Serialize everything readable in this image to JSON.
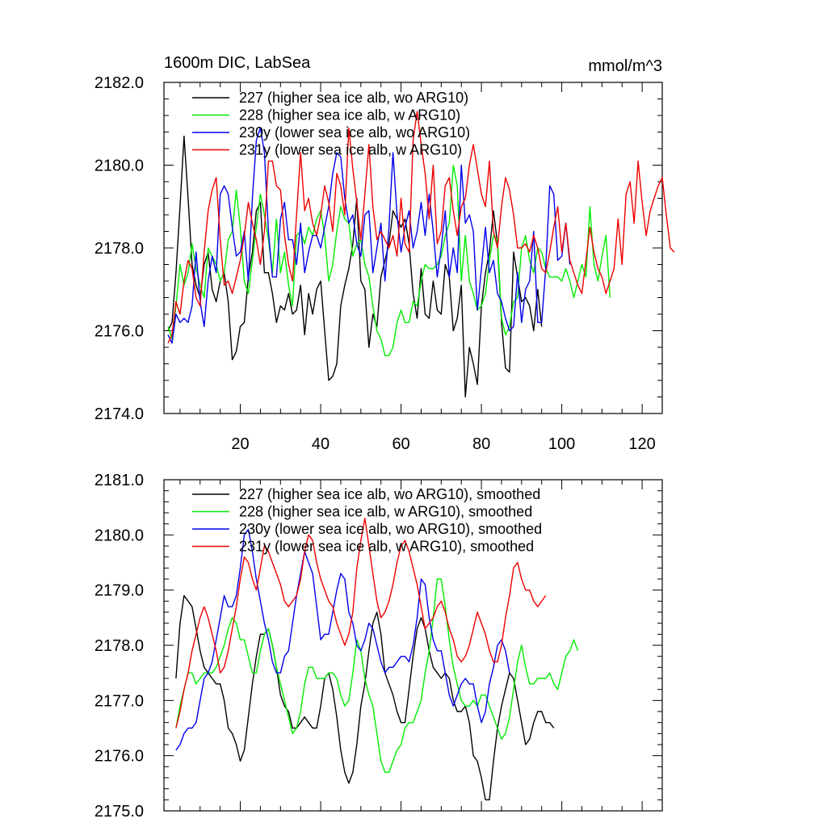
{
  "chart_data": [
    {
      "type": "line",
      "title": "1600m DIC, LabSea",
      "units": "mmol/m^3",
      "xlabel": "",
      "ylabel": "",
      "xlim": [
        1,
        125
      ],
      "ylim": [
        2174.0,
        2182.0
      ],
      "x_ticks": [
        20,
        40,
        60,
        80,
        100,
        120
      ],
      "y_ticks": [
        2174.0,
        2176.0,
        2178.0,
        2180.0,
        2182.0
      ],
      "y_tick_labels": [
        "2174.0",
        "2176.0",
        "2178.0",
        "2180.0",
        "2182.0"
      ],
      "legend_position": "top-left",
      "series": [
        {
          "name": "227 (higher sea ice alb, wo ARG10)",
          "color": "#000000",
          "x_start": 2,
          "values": [
            2176.0,
            2176.2,
            2177.4,
            2179.0,
            2180.7,
            2179.2,
            2177.6,
            2177.1,
            2176.8,
            2177.6,
            2177.9,
            2177.0,
            2176.7,
            2177.2,
            2177.4,
            2176.7,
            2175.3,
            2175.5,
            2176.1,
            2176.2,
            2177.3,
            2177.9,
            2178.9,
            2179.1,
            2177.4,
            2177.4,
            2176.9,
            2176.2,
            2176.6,
            2176.5,
            2176.9,
            2176.4,
            2176.5,
            2177.1,
            2175.9,
            2176.9,
            2176.4,
            2177.0,
            2177.2,
            2176.0,
            2174.8,
            2174.9,
            2175.2,
            2176.6,
            2177.1,
            2177.5,
            2178.1,
            2179.2,
            2177.2,
            2177.0,
            2175.6,
            2176.4,
            2176.1,
            2177.3,
            2177.7,
            2178.1,
            2178.9,
            2178.7,
            2178.5,
            2178.7,
            2178.1,
            2176.9,
            2176.3,
            2177.5,
            2176.4,
            2176.3,
            2177.2,
            2176.5,
            2176.4,
            2177.6,
            2177.3,
            2176.0,
            2176.3,
            2177.1,
            2174.4,
            2175.6,
            2175.2,
            2174.7,
            2176.6,
            2177.4,
            2177.9,
            2178.9,
            2178.1,
            2176.2,
            2175.1,
            2175.0,
            2177.9,
            2177.3,
            2176.7,
            2176.8,
            2176.6,
            2176.0,
            2177.0,
            2176.1
          ]
        },
        {
          "name": "228 (higher sea ice alb, w ARG10)",
          "color": "#00ee00",
          "x_start": 2,
          "values": [
            2176.1,
            2175.8,
            2176.6,
            2177.6,
            2177.1,
            2177.4,
            2178.1,
            2177.5,
            2177.1,
            2176.8,
            2178.0,
            2177.8,
            2177.6,
            2177.2,
            2177.4,
            2178.2,
            2178.4,
            2179.4,
            2178.5,
            2177.2,
            2176.9,
            2177.7,
            2178.5,
            2179.3,
            2178.8,
            2178.2,
            2177.4,
            2178.7,
            2177.4,
            2177.9,
            2177.1,
            2176.6,
            2178.3,
            2178.4,
            2178.1,
            2178.5,
            2178.3,
            2178.7,
            2178.9,
            2178.3,
            2177.2,
            2177.6,
            2178.4,
            2179.0,
            2178.7,
            2178.6,
            2177.8,
            2178.1,
            2178.2,
            2177.6,
            2177.3,
            2176.6,
            2176.0,
            2175.8,
            2175.4,
            2175.4,
            2175.6,
            2176.2,
            2176.5,
            2176.2,
            2176.2,
            2176.7,
            2176.6,
            2177.2,
            2177.6,
            2177.5,
            2177.5,
            2177.6,
            2177.8,
            2178.3,
            2178.6,
            2180.0,
            2179.5,
            2177.2,
            2178.3,
            2177.2,
            2176.9,
            2176.5,
            2176.6,
            2176.9,
            2177.7,
            2178.3,
            2178.2,
            2176.3,
            2175.9,
            2176.1,
            2176.7,
            2176.8,
            2178.0,
            2178.3,
            2177.7,
            2177.4,
            2178.0,
            2177.9,
            2177.5,
            2177.3,
            2177.3,
            2177.3,
            2177.2,
            2177.5,
            2177.2,
            2176.8,
            2177.2,
            2177.6,
            2177.3,
            2179.0,
            2177.6,
            2177.2,
            2177.8,
            2178.3,
            2176.8
          ]
        },
        {
          "name": "230y (lower sea ice alb, wo ARG10)",
          "color": "#0000ee",
          "x_start": 2,
          "values": [
            2175.9,
            2175.7,
            2176.4,
            2176.2,
            2176.3,
            2176.2,
            2176.6,
            2177.9,
            2176.7,
            2176.1,
            2177.2,
            2177.8,
            2177.4,
            2179.3,
            2179.5,
            2179.3,
            2178.5,
            2177.8,
            2177.9,
            2178.4,
            2177.2,
            2179.2,
            2180.6,
            2180.9,
            2180.3,
            2178.4,
            2177.3,
            2177.3,
            2178.7,
            2179.1,
            2178.2,
            2178.2,
            2177.6,
            2178.6,
            2177.4,
            2177.9,
            2178.3,
            2178.3,
            2178.0,
            2178.5,
            2179.0,
            2179.8,
            2180.3,
            2180.2,
            2179.2,
            2178.6,
            2178.8,
            2178.1,
            2177.8,
            2178.8,
            2178.9,
            2177.4,
            2178.0,
            2178.6,
            2177.2,
            2178.5,
            2180.3,
            2178.8,
            2177.9,
            2178.5,
            2178.9,
            2178.0,
            2178.4,
            2179.1,
            2178.3,
            2179.3,
            2178.4,
            2177.3,
            2178.0,
            2178.9,
            2177.3,
            2178.0,
            2177.4,
            2180.0,
            2178.6,
            2178.8,
            2178.4,
            2176.5,
            2177.5,
            2178.5,
            2177.4,
            2177.7,
            2176.9,
            2176.7,
            2176.3,
            2176.0,
            2176.1,
            2177.4,
            2176.2,
            2177.0,
            2177.2,
            2178.4,
            2176.2,
            2176.2,
            2177.5,
            2179.5,
            2179.3,
            2177.7,
            2177.8,
            2178.6,
            2177.6
          ]
        },
        {
          "name": "231y (lower sea ice alb, w ARG10)",
          "color": "#ee0000",
          "x_start": 2,
          "values": [
            2175.7,
            2175.9,
            2176.7,
            2176.4,
            2177.2,
            2177.7,
            2177.5,
            2176.8,
            2176.6,
            2177.9,
            2178.9,
            2179.4,
            2179.7,
            2178.2,
            2177.1,
            2177.2,
            2176.9,
            2177.3,
            2177.7,
            2178.3,
            2179.1,
            2178.6,
            2178.2,
            2177.6,
            2178.4,
            2180.1,
            2180.1,
            2179.5,
            2179.4,
            2178.3,
            2177.6,
            2177.2,
            2178.8,
            2180.3,
            2178.9,
            2179.2,
            2178.6,
            2178.3,
            2178.8,
            2179.5,
            2179.1,
            2178.4,
            2179.8,
            2179.5,
            2178.8,
            2180.9,
            2179.9,
            2179.1,
            2178.2,
            2179.3,
            2180.5,
            2179.0,
            2178.2,
            2178.4,
            2178.2,
            2178.0,
            2178.3,
            2177.8,
            2179.2,
            2178.1,
            2177.9,
            2180.6,
            2181.3,
            2180.5,
            2179.8,
            2178.7,
            2180.0,
            2178.1,
            2178.4,
            2179.5,
            2179.7,
            2178.9,
            2178.3,
            2179.0,
            2179.2,
            2180.0,
            2180.5,
            2179.9,
            2179.3,
            2179.0,
            2180.1,
            2178.4,
            2178.0,
            2179.0,
            2179.7,
            2179.4,
            2178.8,
            2178.0,
            2178.0,
            2178.1,
            2177.9,
            2178.3,
            2178.0,
            2177.5,
            2177.4,
            2177.9,
            2178.5,
            2179.0,
            2177.9,
            2178.6,
            2177.7,
            2177.4,
            2177.1,
            2176.9,
            2177.7,
            2178.5,
            2177.9,
            2177.5,
            2177.3,
            2176.9,
            2177.2,
            2177.5,
            2178.7,
            2177.6,
            2179.3,
            2179.6,
            2178.6,
            2180.1,
            2179.1,
            2178.3,
            2178.9,
            2179.2,
            2179.5,
            2179.7,
            2178.8,
            2178.0,
            2177.9
          ]
        }
      ]
    },
    {
      "type": "line",
      "title": "",
      "xlabel": "",
      "ylabel": "",
      "xlim": [
        1,
        125
      ],
      "ylim": [
        2175.0,
        2181.0
      ],
      "x_ticks": [
        20,
        40,
        60,
        80,
        100,
        120
      ],
      "y_ticks": [
        2175.0,
        2176.0,
        2177.0,
        2178.0,
        2179.0,
        2180.0,
        2181.0
      ],
      "y_tick_labels": [
        "2175.0",
        "2176.0",
        "2177.0",
        "2178.0",
        "2179.0",
        "2180.0",
        "2181.0"
      ],
      "legend_position": "top-left",
      "series": [
        {
          "name": "227 (higher sea ice alb, wo ARG10), smoothed",
          "color": "#000000",
          "x_start": 4,
          "values": [
            2177.4,
            2178.4,
            2178.9,
            2178.8,
            2178.7,
            2178.3,
            2177.9,
            2177.6,
            2177.5,
            2177.4,
            2177.3,
            2177.3,
            2177.0,
            2176.5,
            2176.4,
            2176.2,
            2175.9,
            2176.1,
            2176.7,
            2177.3,
            2177.8,
            2178.2,
            2178.2,
            2178.3,
            2178.0,
            2177.6,
            2177.1,
            2176.9,
            2176.8,
            2176.5,
            2176.5,
            2176.6,
            2176.7,
            2176.6,
            2176.5,
            2176.5,
            2176.9,
            2177.4,
            2177.5,
            2177.2,
            2176.7,
            2176.1,
            2175.7,
            2175.5,
            2175.7,
            2176.2,
            2176.9,
            2177.3,
            2177.9,
            2178.4,
            2178.6,
            2178.2,
            2177.5,
            2177.3,
            2177.1,
            2176.8,
            2176.6,
            2176.6,
            2177.2,
            2177.8,
            2178.3,
            2178.5,
            2178.3,
            2177.9,
            2177.6,
            2177.5,
            2177.4,
            2177.5,
            2177.4,
            2177.0,
            2176.8,
            2176.8,
            2176.9,
            2176.6,
            2176.0,
            2175.9,
            2175.6,
            2175.2,
            2175.2,
            2175.9,
            2176.5,
            2176.9,
            2177.2,
            2177.5,
            2177.4,
            2177.0,
            2176.6,
            2176.2,
            2176.3,
            2176.6,
            2176.8,
            2176.8,
            2176.6,
            2176.6,
            2176.5
          ]
        },
        {
          "name": "228 (higher sea ice alb, w ARG10), smoothed",
          "color": "#00ee00",
          "x_start": 4,
          "values": [
            2176.5,
            2176.9,
            2177.2,
            2177.5,
            2177.5,
            2177.3,
            2177.4,
            2177.5,
            2177.5,
            2177.5,
            2177.6,
            2177.8,
            2178.0,
            2178.3,
            2178.5,
            2178.4,
            2178.1,
            2178.1,
            2177.8,
            2177.5,
            2177.5,
            2177.9,
            2178.2,
            2178.3,
            2178.0,
            2177.6,
            2177.3,
            2177.0,
            2176.7,
            2176.4,
            2176.5,
            2176.8,
            2177.3,
            2177.6,
            2177.6,
            2177.4,
            2177.4,
            2177.4,
            2177.5,
            2177.5,
            2177.4,
            2177.1,
            2176.9,
            2177.0,
            2177.5,
            2178.1,
            2177.9,
            2177.4,
            2177.1,
            2176.9,
            2176.4,
            2175.9,
            2175.7,
            2175.7,
            2175.9,
            2176.1,
            2176.2,
            2176.5,
            2176.6,
            2176.6,
            2176.8,
            2177.0,
            2177.5,
            2177.9,
            2178.5,
            2179.2,
            2179.2,
            2178.7,
            2178.1,
            2177.6,
            2177.3,
            2177.0,
            2176.9,
            2176.9,
            2177.0,
            2176.9,
            2177.1,
            2177.1,
            2176.9,
            2176.7,
            2176.5,
            2176.3,
            2176.4,
            2176.7,
            2177.2,
            2177.7,
            2178.0,
            2177.6,
            2177.3,
            2177.3,
            2177.4,
            2177.4,
            2177.4,
            2177.5,
            2177.3,
            2177.2,
            2177.5,
            2177.8,
            2177.9,
            2178.1,
            2177.9
          ]
        },
        {
          "name": "230y (lower sea ice alb, wo ARG10), smoothed",
          "color": "#0000ee",
          "x_start": 4,
          "values": [
            2176.1,
            2176.2,
            2176.4,
            2176.5,
            2176.5,
            2176.6,
            2177.0,
            2177.4,
            2177.5,
            2177.7,
            2178.1,
            2178.5,
            2178.9,
            2178.7,
            2178.7,
            2178.9,
            2179.4,
            2180.0,
            2180.1,
            2179.7,
            2179.2,
            2178.8,
            2178.4,
            2178.1,
            2177.7,
            2177.5,
            2177.5,
            2177.8,
            2177.9,
            2178.4,
            2178.9,
            2179.3,
            2179.7,
            2179.5,
            2179.3,
            2178.7,
            2178.1,
            2178.2,
            2178.2,
            2178.6,
            2179.0,
            2179.3,
            2179.2,
            2178.6,
            2178.4,
            2178.0,
            2177.9,
            2178.1,
            2178.4,
            2178.3,
            2178.0,
            2177.7,
            2177.5,
            2177.6,
            2177.6,
            2177.7,
            2177.8,
            2177.8,
            2177.7,
            2178.0,
            2178.5,
            2179.2,
            2179.1,
            2178.5,
            2178.1,
            2177.9,
            2177.9,
            2177.5,
            2177.1,
            2176.9,
            2177.1,
            2177.3,
            2177.4,
            2177.3,
            2177.3,
            2176.9,
            2176.6,
            2176.8,
            2177.3,
            2177.6,
            2178.0,
            2178.1,
            2177.9,
            2177.5
          ]
        },
        {
          "name": "231y (lower sea ice alb, w ARG10), smoothed",
          "color": "#ee0000",
          "x_start": 4,
          "values": [
            2176.5,
            2176.8,
            2177.2,
            2177.5,
            2177.9,
            2178.2,
            2178.5,
            2178.7,
            2178.5,
            2178.2,
            2177.9,
            2177.5,
            2177.6,
            2177.9,
            2178.3,
            2178.7,
            2179.2,
            2179.6,
            2179.5,
            2179.2,
            2179.0,
            2179.4,
            2179.8,
            2179.7,
            2179.5,
            2179.3,
            2179.1,
            2178.8,
            2178.7,
            2178.8,
            2178.9,
            2179.2,
            2179.7,
            2180.0,
            2179.9,
            2179.5,
            2179.2,
            2179.0,
            2178.8,
            2178.7,
            2178.4,
            2178.2,
            2178.0,
            2178.2,
            2178.6,
            2179.4,
            2179.9,
            2180.3,
            2179.8,
            2179.3,
            2178.8,
            2178.5,
            2178.6,
            2178.8,
            2179.1,
            2179.5,
            2179.8,
            2179.9,
            2179.7,
            2179.4,
            2179.1,
            2178.7,
            2178.3,
            2178.4,
            2178.5,
            2178.7,
            2178.8,
            2178.6,
            2178.3,
            2178.1,
            2177.8,
            2177.7,
            2177.8,
            2178.0,
            2178.3,
            2178.6,
            2178.4,
            2178.2,
            2177.9,
            2177.7,
            2177.7,
            2178.0,
            2178.5,
            2178.9,
            2179.4,
            2179.5,
            2179.2,
            2179.0,
            2179.0,
            2178.8,
            2178.7,
            2178.8,
            2178.9
          ]
        }
      ]
    }
  ]
}
